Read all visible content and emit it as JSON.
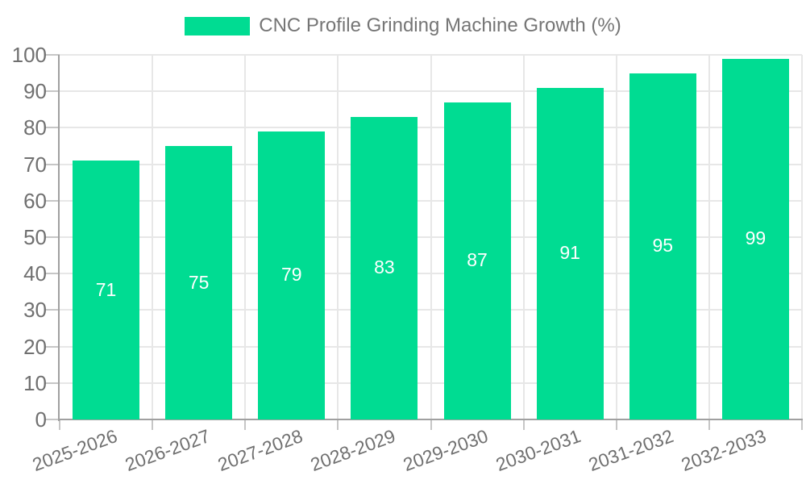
{
  "legend": {
    "label": "CNC Profile Grinding Machine Growth (%)",
    "swatch_color": "#00DC92"
  },
  "chart_data": {
    "type": "bar",
    "title": "CNC Profile Grinding Machine Growth (%)",
    "categories": [
      "2025-2026",
      "2026-2027",
      "2027-2028",
      "2028-2029",
      "2029-2030",
      "2030-2031",
      "2031-2032",
      "2032-2033"
    ],
    "values": [
      71,
      75,
      79,
      83,
      87,
      91,
      95,
      99
    ],
    "bar_labels": [
      "71",
      "75",
      "79",
      "83",
      "87",
      "91",
      "95",
      "99"
    ],
    "xlabel": "",
    "ylabel": "",
    "ylim": [
      0,
      100
    ],
    "yticks": [
      0,
      10,
      20,
      30,
      40,
      50,
      60,
      70,
      80,
      90,
      100
    ],
    "grid": true,
    "legend_position": "top-center",
    "x_label_rotation_deg": -20,
    "colors": {
      "bar": "#00DC92",
      "bar_label": "#ffffff",
      "axis_line": "#a0a0a0",
      "gridline": "#e7e7e7",
      "tick": "#c6c6c6",
      "axis_text": "#707070",
      "legend_text": "#757575",
      "background": "#ffffff"
    }
  }
}
